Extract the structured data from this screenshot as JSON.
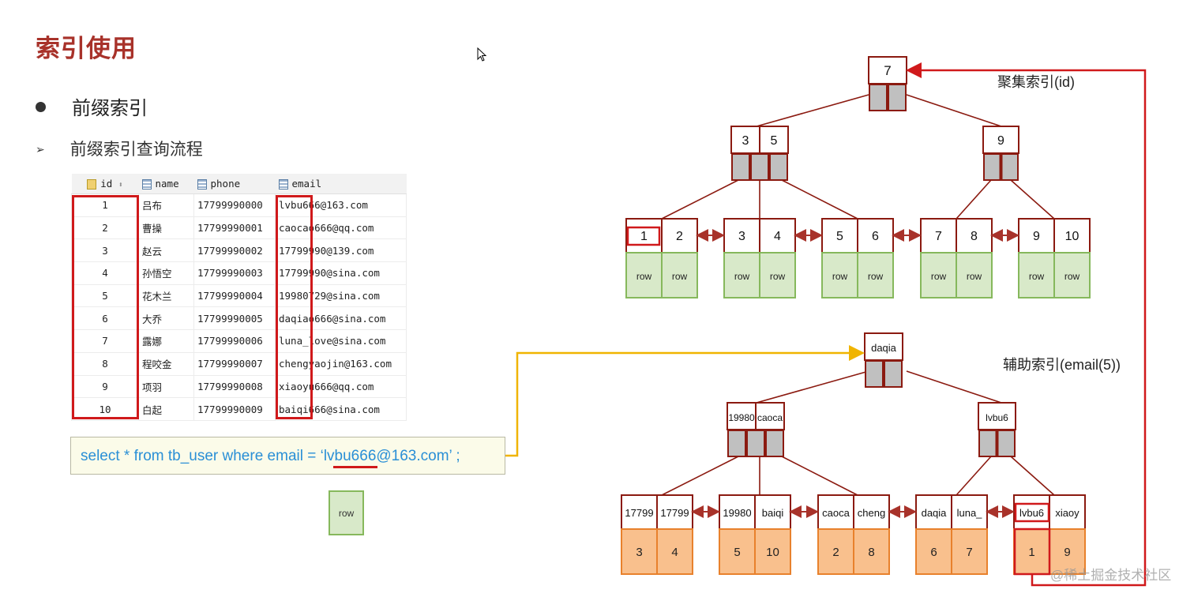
{
  "slide": {
    "title": "索引使用",
    "bullet": "前缀索引",
    "sub_bullet": "前缀索引查询流程"
  },
  "table": {
    "columns": [
      "id",
      "name",
      "phone",
      "email"
    ],
    "rows": [
      [
        "1",
        "吕布",
        "17799990000",
        "lvbu666@163.com"
      ],
      [
        "2",
        "曹操",
        "17799990001",
        "caocao666@qq.com"
      ],
      [
        "3",
        "赵云",
        "17799990002",
        "17799990@139.com"
      ],
      [
        "4",
        "孙悟空",
        "17799990003",
        "17799990@sina.com"
      ],
      [
        "5",
        "花木兰",
        "17799990004",
        "19980729@sina.com"
      ],
      [
        "6",
        "大乔",
        "17799990005",
        "daqiao666@sina.com"
      ],
      [
        "7",
        "露娜",
        "17799990006",
        "luna_love@sina.com"
      ],
      [
        "8",
        "程咬金",
        "17799990007",
        "chengyaojin@163.com"
      ],
      [
        "9",
        "项羽",
        "17799990008",
        "xiaoyu666@qq.com"
      ],
      [
        "10",
        "白起",
        "17799990009",
        "baiqi666@sina.com"
      ]
    ]
  },
  "query": {
    "before": "select * from tb_user where email = ‘",
    "highlight": "lvbu666",
    "after": "@163.com’ ;"
  },
  "row_label": "row",
  "clustered_index": {
    "label": "聚集索引(id)",
    "root": [
      "7"
    ],
    "level2": [
      [
        "3",
        "5"
      ],
      [
        "9"
      ]
    ],
    "leaves": [
      {
        "keys": [
          "1",
          "2"
        ],
        "values": [
          "row",
          "row"
        ]
      },
      {
        "keys": [
          "3",
          "4"
        ],
        "values": [
          "row",
          "row"
        ]
      },
      {
        "keys": [
          "5",
          "6"
        ],
        "values": [
          "row",
          "row"
        ]
      },
      {
        "keys": [
          "7",
          "8"
        ],
        "values": [
          "row",
          "row"
        ]
      },
      {
        "keys": [
          "9",
          "10"
        ],
        "values": [
          "row",
          "row"
        ]
      }
    ],
    "highlighted_key": "1"
  },
  "secondary_index": {
    "label": "辅助索引(email(5))",
    "root": [
      "daqia"
    ],
    "level2": [
      [
        "19980",
        "caoca"
      ],
      [
        "lvbu6"
      ]
    ],
    "leaves": [
      {
        "keys": [
          "17799",
          "17799"
        ],
        "values": [
          "3",
          "4"
        ]
      },
      {
        "keys": [
          "19980",
          "baiqi"
        ],
        "values": [
          "5",
          "10"
        ]
      },
      {
        "keys": [
          "caoca",
          "cheng"
        ],
        "values": [
          "2",
          "8"
        ]
      },
      {
        "keys": [
          "daqia",
          "luna_"
        ],
        "values": [
          "6",
          "7"
        ]
      },
      {
        "keys": [
          "lvbu6",
          "xiaoy"
        ],
        "values": [
          "1",
          "9"
        ]
      }
    ],
    "highlighted_key": "lvbu6"
  },
  "watermark": "@稀土掘金技术社区",
  "colors": {
    "title": "#a8322a",
    "node_border": "#8b1a10",
    "pointer_fill": "#c0c0c0",
    "row_fill": "#d8e9c9",
    "row_border": "#86b85c",
    "value_fill": "#f9c08d",
    "value_border": "#e8812c",
    "highlight": "#d0191b",
    "lookup_arrow": "#f0b400",
    "query_text": "#2a8fd6"
  }
}
